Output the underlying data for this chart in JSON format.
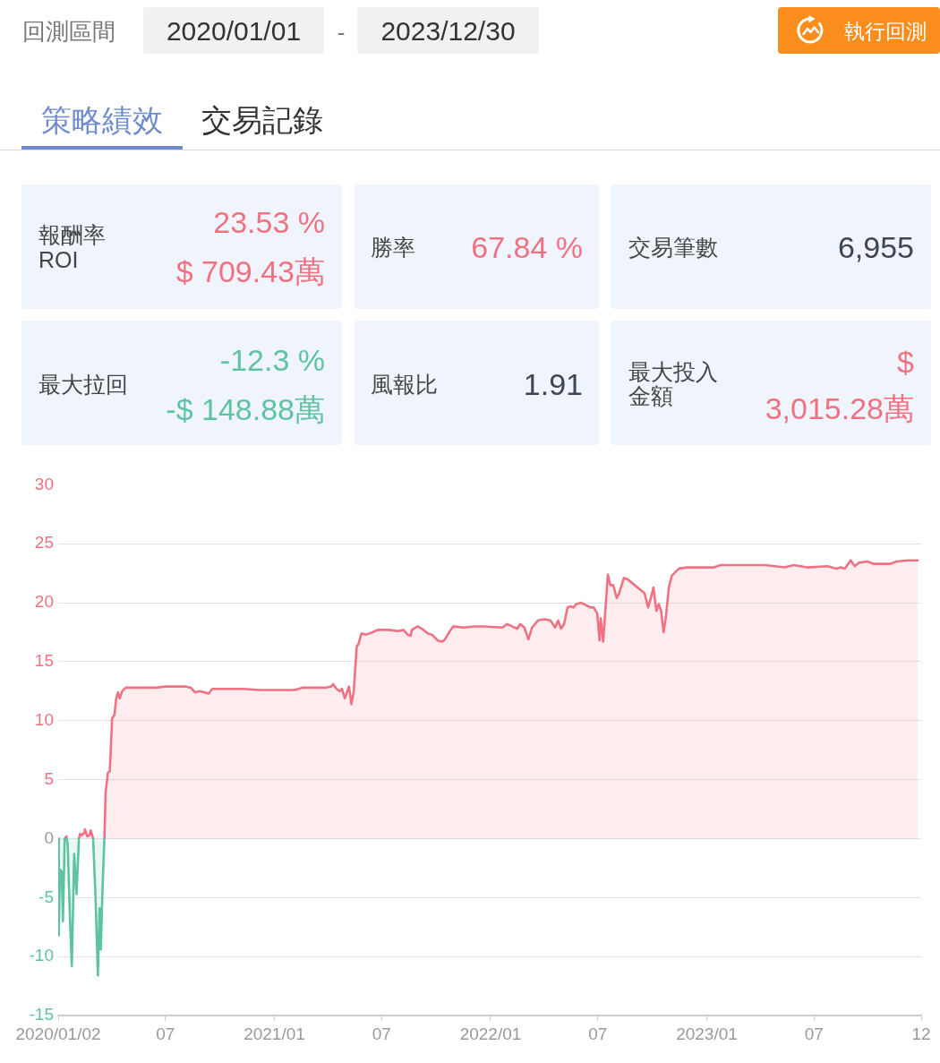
{
  "chart_data": [
    {
      "type": "other",
      "annotations": [
        "回測區間",
        "2020/01/01",
        "-",
        "2023/12/30",
        "執行回測",
        "策略績效",
        "交易記錄",
        "報酬率",
        "ROI",
        "23.53 %",
        "$ 709.43萬",
        "勝率",
        "67.84 %",
        "交易筆數",
        "6,955",
        "最大拉回",
        "-12.3 %",
        "-$ 148.88萬",
        "風報比",
        "1.91",
        "最大投入",
        "金額",
        "$",
        "3,015.28萬"
      ]
    },
    {
      "type": "area",
      "x": [
        "2020-01-02",
        "2020-01-03",
        "2020-01-05",
        "2020-01-08",
        "2020-01-10",
        "2020-01-13",
        "2020-01-16",
        "2020-01-18",
        "2020-01-22",
        "2020-01-25",
        "2020-01-29",
        "2020-02-02",
        "2020-02-06",
        "2020-02-08",
        "2020-02-11",
        "2020-02-15",
        "2020-02-16",
        "2020-02-20",
        "2020-02-24",
        "2020-02-26",
        "2020-03-01",
        "2020-03-05",
        "2020-03-09",
        "2020-03-12",
        "2020-03-14",
        "2020-03-17",
        "2020-03-20",
        "2020-03-22",
        "2020-03-26",
        "2020-03-29",
        "2020-04-01",
        "2020-04-02",
        "2020-04-06",
        "2020-04-09",
        "2020-04-12",
        "2020-04-15",
        "2020-04-19",
        "2020-04-25",
        "2020-05-15",
        "2020-06-15",
        "2020-07-01",
        "2020-08-04",
        "2020-08-13",
        "2020-08-20",
        "2020-08-28",
        "2020-09-12",
        "2020-09-18",
        "2020-10-10",
        "2020-11-09",
        "2020-12-08",
        "2021-01-01",
        "2021-02-04",
        "2021-02-17",
        "2021-03-28",
        "2021-04-07",
        "2021-04-10",
        "2021-04-16",
        "2021-04-21",
        "2021-04-25",
        "2021-04-30",
        "2021-05-07",
        "2021-05-11",
        "2021-05-15",
        "2021-05-20",
        "2021-05-23",
        "2021-05-28",
        "2021-06-05",
        "2021-06-16",
        "2021-06-24",
        "2021-07-14",
        "2021-07-28",
        "2021-08-07",
        "2021-08-14",
        "2021-08-19",
        "2021-08-21",
        "2021-08-31",
        "2021-09-07",
        "2021-09-17",
        "2021-09-24",
        "2021-10-04",
        "2021-10-11",
        "2021-10-16",
        "2021-10-23",
        "2021-10-30",
        "2021-11-16",
        "2021-12-05",
        "2021-12-20",
        "2022-01-21",
        "2022-01-29",
        "2022-02-06",
        "2022-02-15",
        "2022-02-20",
        "2022-02-27",
        "2022-03-06",
        "2022-03-12",
        "2022-03-22",
        "2022-04-02",
        "2022-04-12",
        "2022-04-20",
        "2022-04-25",
        "2022-04-30",
        "2022-05-05",
        "2022-05-11",
        "2022-05-16",
        "2022-05-21",
        "2022-05-26",
        "2022-06-03",
        "2022-06-11",
        "2022-06-19",
        "2022-06-24",
        "2022-06-30",
        "2022-07-04",
        "2022-07-06",
        "2022-07-10",
        "2022-07-15",
        "2022-07-18",
        "2022-07-22",
        "2022-07-27",
        "2022-08-02",
        "2022-08-06",
        "2022-08-14",
        "2022-08-20",
        "2022-08-25",
        "2022-09-06",
        "2022-09-18",
        "2022-09-24",
        "2022-09-28",
        "2022-10-03",
        "2022-10-08",
        "2022-10-12",
        "2022-10-16",
        "2022-10-20",
        "2022-10-24",
        "2022-10-29",
        "2022-11-03",
        "2022-11-15",
        "2022-11-29",
        "2023-01-13",
        "2023-01-24",
        "2023-04-10",
        "2023-05-12",
        "2023-05-28",
        "2023-06-19",
        "2023-07-24",
        "2023-08-08",
        "2023-08-15",
        "2023-08-22",
        "2023-09-01",
        "2023-09-08",
        "2023-09-15",
        "2023-09-30",
        "2023-10-09",
        "2023-11-07",
        "2023-11-17",
        "2023-12-06",
        "2023-12-23"
      ],
      "series": [
        {
          "color": "#f07282",
          "colors": [
            "#f07282",
            "#5ec3a2",
            "#5ec3a2",
            "#5ec3a2",
            "#5ec3a2",
            "#f07282",
            "#f07282",
            "#5ec3a2",
            "#5ec3a2",
            "#5ec3a2",
            "#5ec3a2",
            "#5ec3a2",
            "#f07282",
            "#f07282",
            "#f07282",
            "#f07282",
            "#f07282",
            "#f07282",
            "#f07282",
            "#f07282",
            "#f07282",
            "#5ec3a2",
            "#5ec3a2",
            "#5ec3a2",
            "#5ec3a2",
            "#5ec3a2",
            "#f07282",
            "#f07282",
            "#f07282",
            "#f07282",
            "#f07282",
            "#f07282",
            "#f07282",
            "#f07282",
            "#f07282",
            "#f07282",
            "#f07282",
            "#f07282",
            "#f07282",
            "#f07282",
            "#f07282",
            "#f07282",
            "#f07282",
            "#f07282",
            "#f07282",
            "#f07282",
            "#f07282",
            "#f07282",
            "#f07282",
            "#f07282",
            "#f07282",
            "#f07282",
            "#f07282",
            "#f07282",
            "#f07282",
            "#f07282",
            "#f07282",
            "#f07282",
            "#f07282",
            "#f07282",
            "#f07282",
            "#f07282",
            "#f07282",
            "#f07282",
            "#f07282",
            "#f07282",
            "#f07282",
            "#f07282",
            "#f07282",
            "#f07282",
            "#f07282",
            "#f07282",
            "#f07282",
            "#f07282",
            "#f07282",
            "#f07282",
            "#f07282",
            "#f07282",
            "#f07282",
            "#f07282",
            "#f07282",
            "#f07282",
            "#f07282",
            "#f07282",
            "#f07282",
            "#f07282",
            "#f07282",
            "#f07282",
            "#f07282",
            "#f07282",
            "#f07282",
            "#f07282",
            "#f07282",
            "#f07282",
            "#f07282",
            "#f07282",
            "#f07282",
            "#f07282",
            "#f07282",
            "#f07282",
            "#f07282",
            "#f07282",
            "#f07282",
            "#f07282",
            "#f07282",
            "#f07282",
            "#f07282",
            "#f07282",
            "#f07282",
            "#f07282",
            "#f07282",
            "#f07282",
            "#f07282",
            "#f07282",
            "#f07282",
            "#f07282",
            "#f07282",
            "#f07282",
            "#f07282",
            "#f07282",
            "#f07282",
            "#f07282",
            "#f07282",
            "#f07282",
            "#f07282",
            "#f07282",
            "#f07282",
            "#f07282",
            "#f07282",
            "#f07282",
            "#f07282",
            "#f07282",
            "#f07282",
            "#f07282",
            "#f07282",
            "#f07282",
            "#f07282",
            "#f07282",
            "#f07282",
            "#f07282",
            "#f07282",
            "#f07282",
            "#f07282",
            "#f07282",
            "#f07282",
            "#f07282",
            "#f07282",
            "#f07282",
            "#f07282",
            "#f07282",
            "#f07282",
            "#f07282",
            "#f07282",
            "#f07282",
            "#f07282",
            "#f07282"
          ],
          "values": [
            0,
            -8.2,
            -2.6,
            -2.8,
            -7.0,
            0,
            0.2,
            -0.5,
            -7.0,
            -10.8,
            -1.3,
            -4.7,
            0,
            0.4,
            0.3,
            0.5,
            0.8,
            0.2,
            0.3,
            0.7,
            0,
            -4.9,
            -11.6,
            -5.9,
            -9.4,
            -4.0,
            0,
            3.9,
            5.6,
            5.7,
            8.9,
            10.2,
            10.5,
            11.9,
            12.4,
            11.9,
            12.5,
            12.8,
            12.8,
            12.8,
            12.9,
            12.9,
            12.8,
            12.4,
            12.5,
            12.3,
            12.7,
            12.7,
            12.7,
            12.6,
            12.6,
            12.6,
            12.8,
            12.8,
            12.9,
            13.1,
            12.7,
            12.5,
            12.7,
            11.9,
            12.9,
            11.4,
            12.5,
            16.3,
            16.5,
            17.4,
            17.3,
            17.5,
            17.7,
            17.7,
            17.6,
            17.7,
            17.3,
            17.2,
            17.7,
            18.0,
            17.8,
            17.4,
            17.3,
            16.8,
            16.7,
            16.9,
            17.5,
            18.0,
            17.9,
            18.0,
            18.0,
            17.9,
            18.2,
            18.0,
            17.8,
            18.2,
            17.9,
            16.9,
            17.9,
            18.5,
            18.6,
            18.5,
            17.9,
            18.5,
            17.8,
            18.2,
            19.6,
            19.7,
            19.6,
            19.9,
            20.0,
            19.8,
            19.6,
            19.6,
            19.1,
            16.8,
            18.7,
            16.7,
            20.2,
            22.4,
            21.5,
            21.5,
            20.4,
            20.8,
            22.1,
            22.0,
            21.8,
            21.3,
            20.8,
            19.6,
            20.3,
            21.3,
            19.3,
            19.9,
            19.3,
            17.5,
            18.8,
            21.3,
            22.3,
            22.9,
            23.0,
            23.0,
            23.2,
            23.2,
            23.0,
            23.2,
            23.0,
            23.1,
            22.9,
            23.0,
            22.9,
            23.6,
            23.1,
            23.4,
            23.5,
            23.3,
            23.3,
            23.5,
            23.6,
            23.6
          ]
        }
      ],
      "xlim": [
        "2020-01-02",
        "2023-12-29"
      ],
      "xticks": [
        {
          "value": "2020-01-02",
          "label": "2020/01/02"
        },
        {
          "value": "2020-07-01",
          "label": "07"
        },
        {
          "value": "2021-01-01",
          "label": "2021/01"
        },
        {
          "value": "2021-07-01",
          "label": "07"
        },
        {
          "value": "2022-01-01",
          "label": "2022/01"
        },
        {
          "value": "2022-07-01",
          "label": "07"
        },
        {
          "value": "2023-01-01",
          "label": "2023/01"
        },
        {
          "value": "2023-07-01",
          "label": "07"
        },
        {
          "value": "2023-12-29",
          "label": "12"
        }
      ],
      "ylim": [
        -15,
        30
      ],
      "yticks": [
        -15,
        -10,
        -5,
        0,
        5,
        10,
        15,
        20,
        25,
        30
      ],
      "grid": "y",
      "legend": false,
      "marker": "none"
    }
  ]
}
